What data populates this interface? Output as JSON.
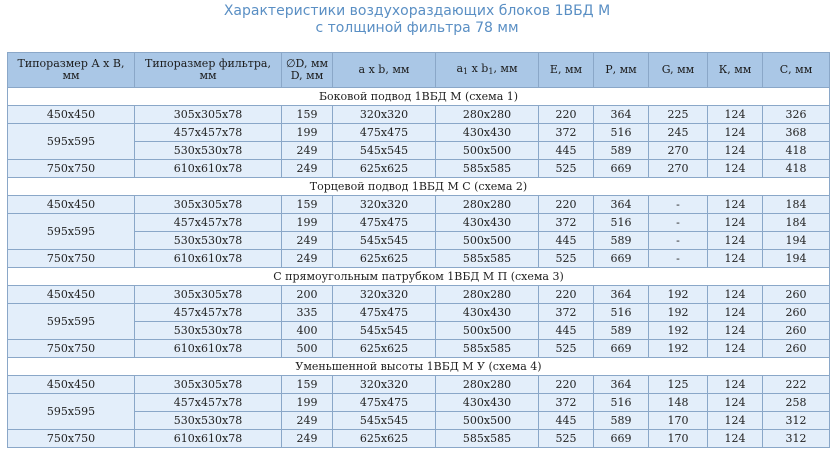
{
  "title": {
    "line1": "Характеристики воздухораздающих блоков 1ВБД М",
    "line2": "с толщиной фильтра 78 мм"
  },
  "headers": {
    "size_ab": "Типоразмер А х В, мм",
    "filter_size": "Типоразмер фильтра, мм",
    "dia": "∅D, мм D, мм",
    "axb": "а х b, мм",
    "a1": "а",
    "a1_sub": "1",
    "x_b": " х b",
    "b1_sub": "1",
    "a1b1_unit": ", мм",
    "e": "Е, мм",
    "p": "Р, мм",
    "g": "G, мм",
    "k": "К, мм",
    "c": "С, мм"
  },
  "sections": [
    {
      "title": "Боковой подвод 1ВБД М (схема 1)",
      "rows": [
        {
          "size": "450x450",
          "filter": "305x305x78",
          "d": "159",
          "axb": "320x320",
          "a1b1": "280x280",
          "e": "220",
          "p": "364",
          "g": "225",
          "k": "124",
          "c": "326"
        },
        {
          "size": "595x595",
          "filter": "457x457x78",
          "d": "199",
          "axb": "475x475",
          "a1b1": "430x430",
          "e": "372",
          "p": "516",
          "g": "245",
          "k": "124",
          "c": "368"
        },
        {
          "size": "",
          "filter": "530x530x78",
          "d": "249",
          "axb": "545x545",
          "a1b1": "500x500",
          "e": "445",
          "p": "589",
          "g": "270",
          "k": "124",
          "c": "418"
        },
        {
          "size": "750x750",
          "filter": "610x610x78",
          "d": "249",
          "axb": "625x625",
          "a1b1": "585x585",
          "e": "525",
          "p": "669",
          "g": "270",
          "k": "124",
          "c": "418"
        }
      ]
    },
    {
      "title": "Торцевой подвод 1ВБД М С (схема 2)",
      "rows": [
        {
          "size": "450x450",
          "filter": "305x305x78",
          "d": "159",
          "axb": "320x320",
          "a1b1": "280x280",
          "e": "220",
          "p": "364",
          "g": "-",
          "k": "124",
          "c": "184"
        },
        {
          "size": "595x595",
          "filter": "457x457x78",
          "d": "199",
          "axb": "475x475",
          "a1b1": "430x430",
          "e": "372",
          "p": "516",
          "g": "-",
          "k": "124",
          "c": "184"
        },
        {
          "size": "",
          "filter": "530x530x78",
          "d": "249",
          "axb": "545x545",
          "a1b1": "500x500",
          "e": "445",
          "p": "589",
          "g": "-",
          "k": "124",
          "c": "194"
        },
        {
          "size": "750x750",
          "filter": "610x610x78",
          "d": "249",
          "axb": "625x625",
          "a1b1": "585x585",
          "e": "525",
          "p": "669",
          "g": "-",
          "k": "124",
          "c": "194"
        }
      ]
    },
    {
      "title": "С прямоугольным патрубком 1ВБД М П (схема 3)",
      "rows": [
        {
          "size": "450x450",
          "filter": "305x305x78",
          "d": "200",
          "axb": "320x320",
          "a1b1": "280x280",
          "e": "220",
          "p": "364",
          "g": "192",
          "k": "124",
          "c": "260"
        },
        {
          "size": "595x595",
          "filter": "457x457x78",
          "d": "335",
          "axb": "475x475",
          "a1b1": "430x430",
          "e": "372",
          "p": "516",
          "g": "192",
          "k": "124",
          "c": "260"
        },
        {
          "size": "",
          "filter": "530x530x78",
          "d": "400",
          "axb": "545x545",
          "a1b1": "500x500",
          "e": "445",
          "p": "589",
          "g": "192",
          "k": "124",
          "c": "260"
        },
        {
          "size": "750x750",
          "filter": "610x610x78",
          "d": "500",
          "axb": "625x625",
          "a1b1": "585x585",
          "e": "525",
          "p": "669",
          "g": "192",
          "k": "124",
          "c": "260"
        }
      ]
    },
    {
      "title": "Уменьшенной высоты 1ВБД М У (схема 4)",
      "rows": [
        {
          "size": "450x450",
          "filter": "305x305x78",
          "d": "159",
          "axb": "320x320",
          "a1b1": "280x280",
          "e": "220",
          "p": "364",
          "g": "125",
          "k": "124",
          "c": "222"
        },
        {
          "size": "595x595",
          "filter": "457x457x78",
          "d": "199",
          "axb": "475x475",
          "a1b1": "430x430",
          "e": "372",
          "p": "516",
          "g": "148",
          "k": "124",
          "c": "258"
        },
        {
          "size": "",
          "filter": "530x530x78",
          "d": "249",
          "axb": "545x545",
          "a1b1": "500x500",
          "e": "445",
          "p": "589",
          "g": "170",
          "k": "124",
          "c": "312"
        },
        {
          "size": "750x750",
          "filter": "610x610x78",
          "d": "249",
          "axb": "625x625",
          "a1b1": "585x585",
          "e": "525",
          "p": "669",
          "g": "170",
          "k": "124",
          "c": "312"
        }
      ]
    }
  ]
}
